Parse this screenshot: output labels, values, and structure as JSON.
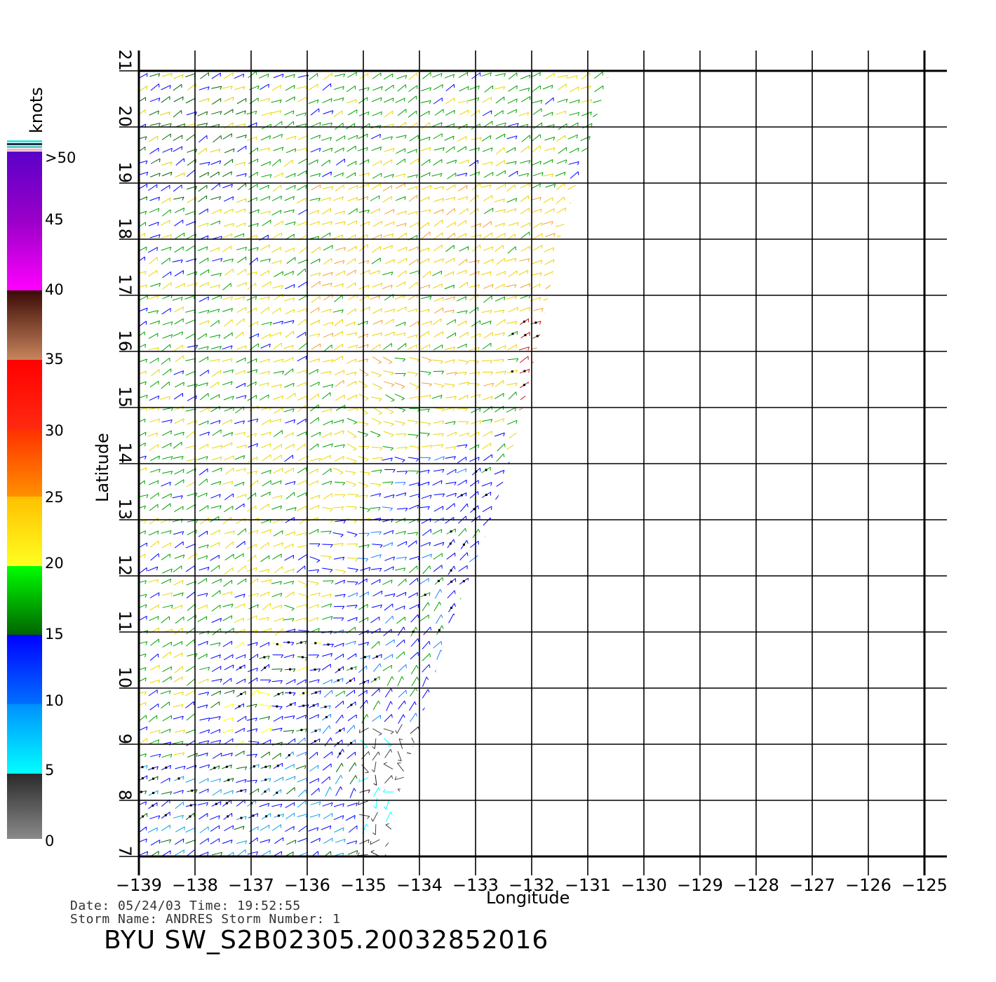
{
  "map": {
    "lon_range": [
      -139,
      -125
    ],
    "lat_range": [
      7,
      21
    ],
    "lon_ticks": [
      "−139",
      "−138",
      "−137",
      "−136",
      "−135",
      "−134",
      "−133",
      "−132",
      "−131",
      "−130",
      "−129",
      "−128",
      "−127",
      "−126",
      "−125"
    ],
    "lat_ticks": [
      "7",
      "8",
      "9",
      "10",
      "11",
      "12",
      "13",
      "14",
      "15",
      "16",
      "17",
      "18",
      "19",
      "20",
      "21"
    ],
    "xlabel": "Longitude",
    "ylabel": "Latitude",
    "swath_edge_lonlat": [
      [
        -130.6,
        21
      ],
      [
        -131.5,
        18
      ],
      [
        -131.8,
        16.5
      ],
      [
        -132.4,
        14
      ],
      [
        -132.9,
        12.5
      ],
      [
        -133.5,
        11
      ],
      [
        -134.1,
        9
      ],
      [
        -134.4,
        8
      ],
      [
        -134.6,
        7
      ]
    ]
  },
  "colorbar": {
    "unit": "knots",
    "labels": [
      ">50",
      "45",
      "40",
      "35",
      "30",
      "25",
      "20",
      "15",
      "10",
      "5",
      "0"
    ],
    "colors": {
      "gray_low": "#8a8a8a",
      "gray_high": "#2a2a2a",
      "cyan": "#00ffff",
      "blue": "#0000ff",
      "green_dark": "#006400",
      "green": "#00ff00",
      "yellow": "#ffff00",
      "orange": "#ffc000",
      "red_orange": "#ff5000",
      "red": "#ff0000",
      "brown_light": "#c8845c",
      "brown_dark": "#3a0a06",
      "magenta": "#ff00ff",
      "purple": "#5a00c8"
    }
  },
  "footer": {
    "line1": "Date: 05/24/03   Time: 19:52:55",
    "line2": "Storm Name: ANDRES   Storm Number: 1",
    "title": "BYU SW_S2B02305.20032852016"
  }
}
